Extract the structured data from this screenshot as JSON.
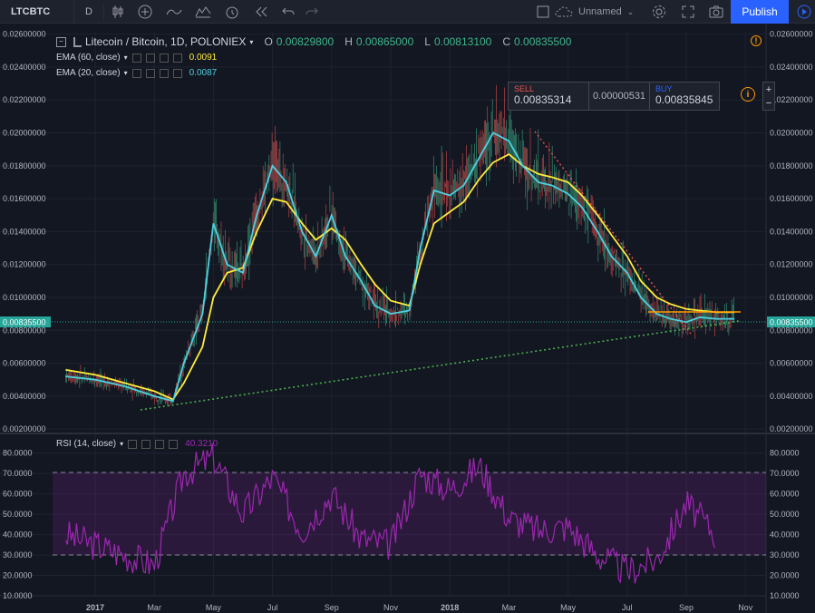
{
  "toolbar": {
    "symbol": "LTCBTC",
    "interval": "D",
    "layout_name": "Unnamed",
    "publish_label": "Publish",
    "icons": [
      "candles-icon",
      "add-indicator-icon",
      "compare-icon",
      "indicators-icon",
      "alert-icon",
      "replay-icon",
      "undo-icon",
      "redo-icon",
      "fullscreen-square-icon",
      "cloud-icon",
      "settings-icon",
      "fullscreen-icon",
      "snapshot-icon",
      "play-icon"
    ]
  },
  "legend": {
    "title": "Litecoin / Bitcoin, 1D, POLONIEX",
    "open_label": "O",
    "open": "0.00829800",
    "high_label": "H",
    "high": "0.00865000",
    "low_label": "L",
    "low": "0.00813100",
    "close_label": "C",
    "close": "0.00835500",
    "ema60_label": "EMA (60, close)",
    "ema60_value": "0.0091",
    "ema20_label": "EMA (20, close)",
    "ema20_value": "0.0087",
    "rsi_label": "RSI (14, close)",
    "rsi_value": "40.3210"
  },
  "trade": {
    "sell_label": "SELL",
    "sell_price": "0.00835314",
    "spread": "0.00000531",
    "buy_label": "BUY",
    "buy_price": "0.00835845",
    "plus": "+",
    "minus": "−"
  },
  "colors": {
    "background": "#131722",
    "ema60": "#ffeb3b",
    "ema20": "#4dd0e1",
    "rsi": "#9c27b0",
    "up": "#3fb68b",
    "down": "#ef5350",
    "support_line": "#4caf50",
    "resistance_line": "#ef5350",
    "level": "#ff9800",
    "last_price": "#26a69a"
  },
  "chart_data": [
    {
      "type": "line",
      "title": "Litecoin / Bitcoin, 1D, POLONIEX",
      "x": [
        "2016-12",
        "2017-01",
        "2017-02",
        "2017-03",
        "2017-03-20",
        "2017-04",
        "2017-04-20",
        "2017-05",
        "2017-05-15",
        "2017-06",
        "2017-06-15",
        "2017-07",
        "2017-07-15",
        "2017-08",
        "2017-08-15",
        "2017-09",
        "2017-09-15",
        "2017-10",
        "2017-10-15",
        "2017-11",
        "2017-11-20",
        "2017-12",
        "2017-12-15",
        "2018-01",
        "2018-01-15",
        "2018-02",
        "2018-02-15",
        "2018-03",
        "2018-03-15",
        "2018-04",
        "2018-04-15",
        "2018-05",
        "2018-05-15",
        "2018-06",
        "2018-06-15",
        "2018-07",
        "2018-07-15",
        "2018-08",
        "2018-08-15",
        "2018-09",
        "2018-09-15",
        "2018-10",
        "2018-10-20"
      ],
      "series": [
        {
          "name": "EMA (20, close)",
          "values": [
            0.0052,
            0.005,
            0.0046,
            0.004,
            0.0037,
            0.006,
            0.009,
            0.0145,
            0.012,
            0.0115,
            0.015,
            0.018,
            0.017,
            0.014,
            0.0125,
            0.015,
            0.0125,
            0.011,
            0.0095,
            0.009,
            0.0092,
            0.013,
            0.0165,
            0.0162,
            0.0168,
            0.0185,
            0.02,
            0.0195,
            0.018,
            0.017,
            0.0168,
            0.0163,
            0.0155,
            0.014,
            0.0125,
            0.0115,
            0.01,
            0.009,
            0.0087,
            0.0085,
            0.0088,
            0.0087,
            0.0087
          ]
        },
        {
          "name": "EMA (60, close)",
          "values": [
            0.0056,
            0.0053,
            0.0048,
            0.0043,
            0.0038,
            0.0048,
            0.007,
            0.01,
            0.0115,
            0.0118,
            0.014,
            0.016,
            0.0158,
            0.0145,
            0.0135,
            0.0142,
            0.0135,
            0.012,
            0.0108,
            0.0098,
            0.0095,
            0.012,
            0.0145,
            0.0152,
            0.0158,
            0.0172,
            0.0182,
            0.0187,
            0.018,
            0.0175,
            0.0173,
            0.017,
            0.0162,
            0.015,
            0.0138,
            0.0125,
            0.011,
            0.01,
            0.0096,
            0.0093,
            0.0092,
            0.0091,
            0.0091
          ]
        }
      ],
      "annotations": [
        "support trendline (dotted green)",
        "resistance trendline (dotted red)",
        "horizontal level (orange)"
      ],
      "last_price": "0.00835500",
      "xticks": [
        "2017",
        "Mar",
        "May",
        "Jul",
        "Sep",
        "Nov",
        "2018",
        "Mar",
        "May",
        "Jul",
        "Sep",
        "Nov"
      ],
      "yticks": [
        "0.02600000",
        "0.02400000",
        "0.02200000",
        "0.02000000",
        "0.01800000",
        "0.01600000",
        "0.01400000",
        "0.01200000",
        "0.01000000",
        "0.00800000",
        "0.00600000",
        "0.00400000",
        "0.00200000"
      ],
      "ylim": [
        0.0019,
        0.0262
      ],
      "grid": true
    },
    {
      "type": "line",
      "title": "RSI (14, close)",
      "x": [
        "2016-12",
        "2017-01",
        "2017-02",
        "2017-03",
        "2017-04",
        "2017-05",
        "2017-06",
        "2017-07",
        "2017-08",
        "2017-09",
        "2017-10",
        "2017-11",
        "2017-12",
        "2018-01",
        "2018-02",
        "2018-03",
        "2018-04",
        "2018-05",
        "2018-06",
        "2018-07",
        "2018-08",
        "2018-09",
        "2018-10"
      ],
      "series": [
        {
          "name": "RSI (14, close)",
          "values": [
            40,
            35,
            30,
            25,
            70,
            78,
            50,
            68,
            42,
            60,
            38,
            35,
            70,
            62,
            74,
            48,
            42,
            44,
            30,
            22,
            28,
            55,
            40.321
          ]
        }
      ],
      "bands": [
        30,
        70
      ],
      "yticks": [
        "80.0000",
        "70.0000",
        "60.0000",
        "50.0000",
        "40.0000",
        "30.0000",
        "20.0000",
        "10.0000"
      ],
      "ylim": [
        10,
        87
      ],
      "grid": true
    }
  ]
}
